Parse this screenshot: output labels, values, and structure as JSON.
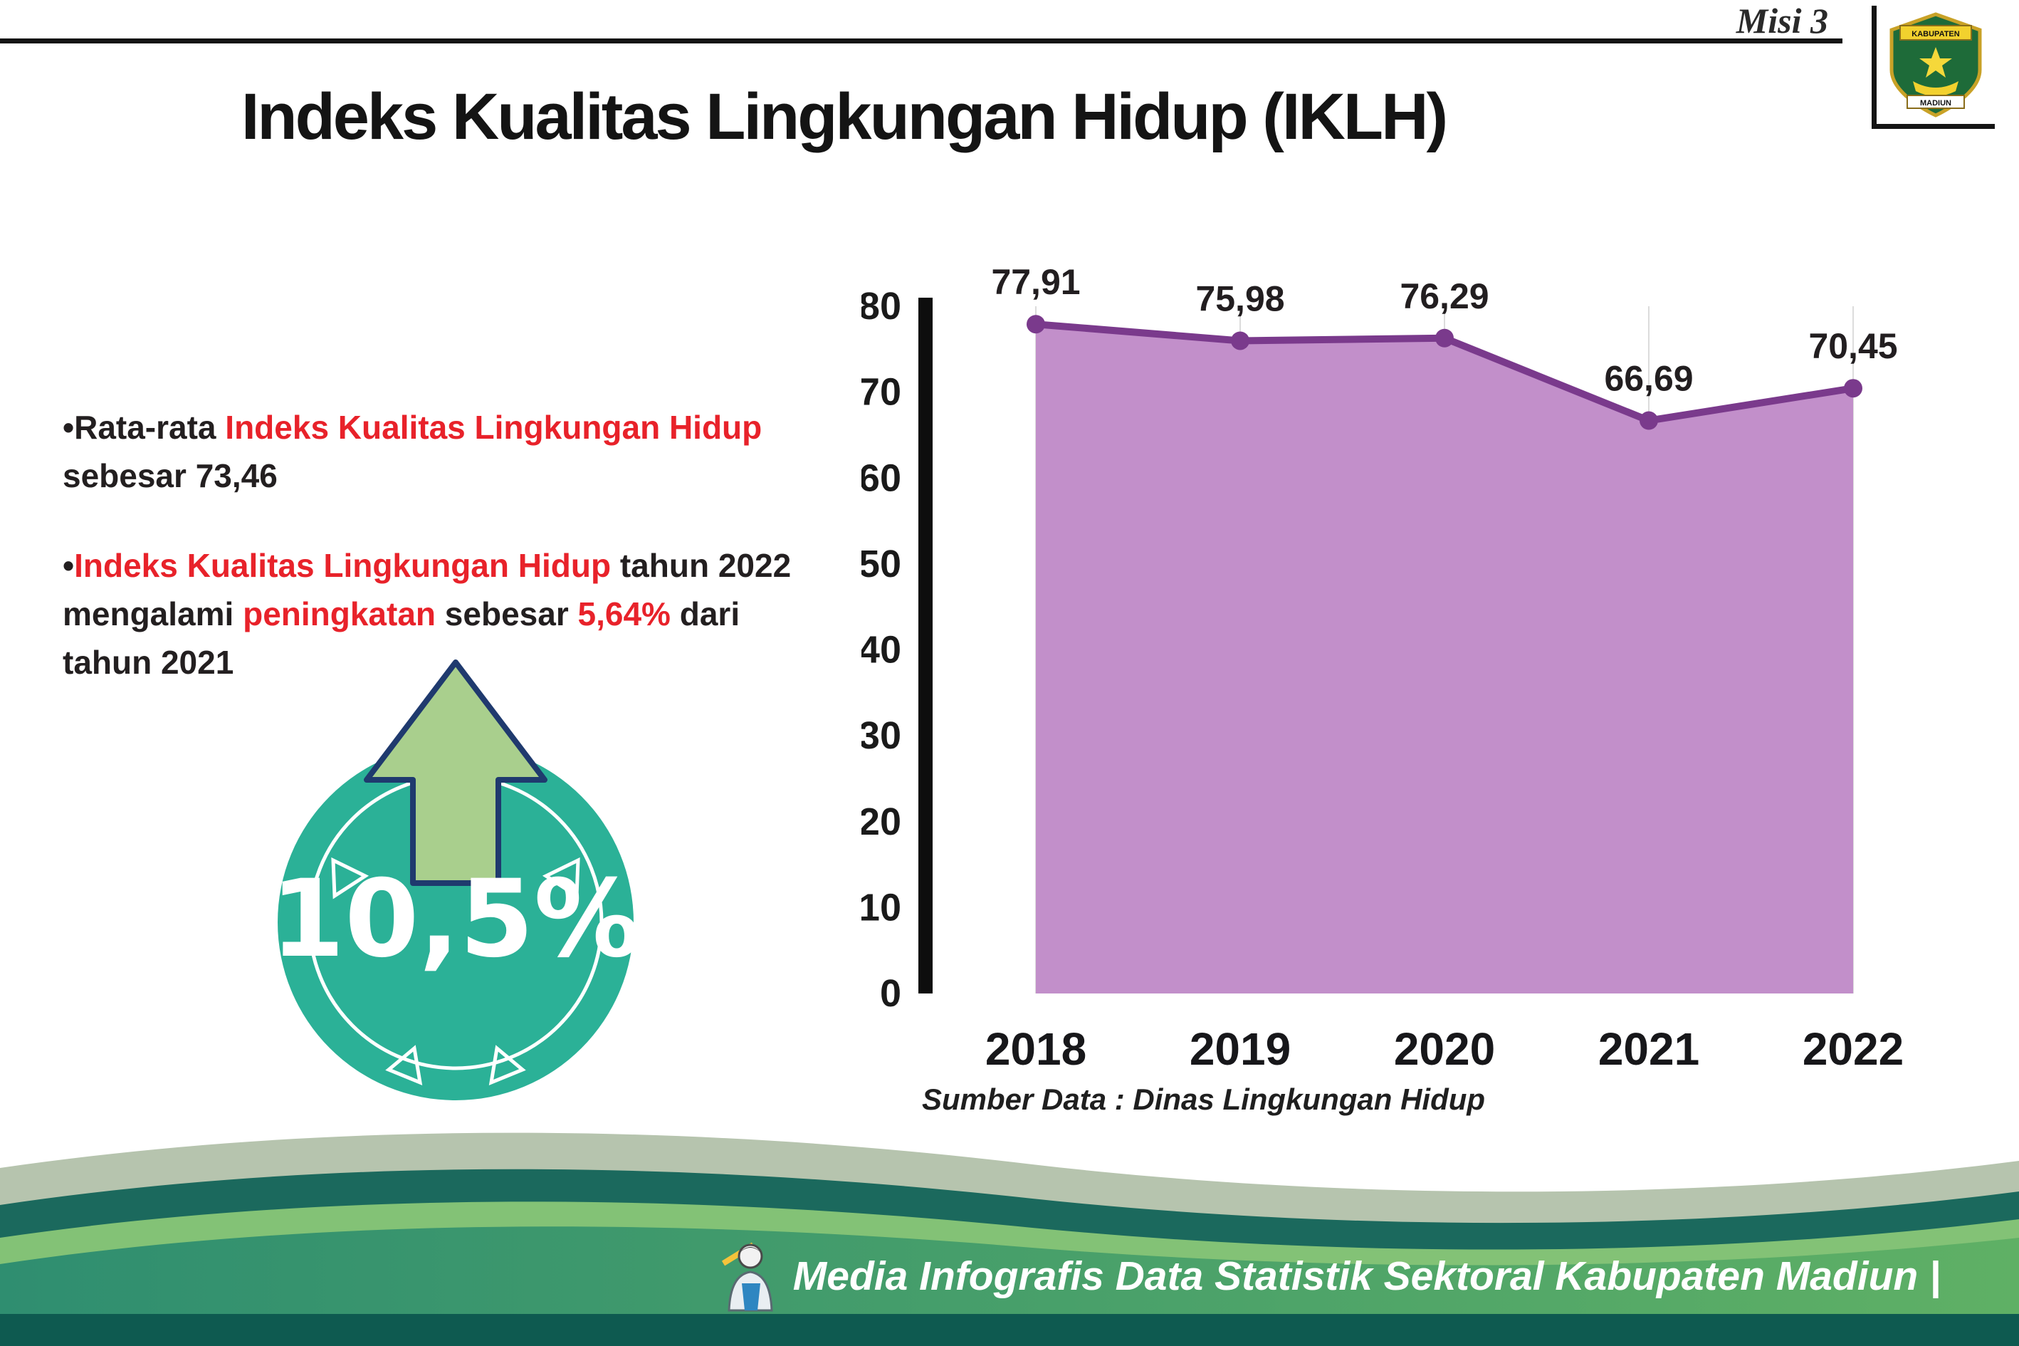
{
  "header": {
    "misi": "Misi 3",
    "title": "Indeks Kualitas Lingkungan Hidup (IKLH)",
    "logo": {
      "name": "Lambang Kabupaten Madiun",
      "banner": "KABUPATEN",
      "bottom": "MADIUN"
    }
  },
  "bullets": [
    {
      "segments": [
        {
          "text": "•Rata-rata ",
          "style": "dark"
        },
        {
          "text": "Indeks Kualitas Lingkungan Hidup",
          "style": "red"
        },
        {
          "text": " sebesar 73,46",
          "style": "dark"
        }
      ]
    },
    {
      "segments": [
        {
          "text": "•",
          "style": "dark"
        },
        {
          "text": "Indeks Kualitas Lingkungan Hidup",
          "style": "red"
        },
        {
          "text": " tahun 2022 mengalami ",
          "style": "dark"
        },
        {
          "text": "peningkatan",
          "style": "red"
        },
        {
          "text": " sebesar ",
          "style": "dark"
        },
        {
          "text": "5,64%",
          "style": "red"
        },
        {
          "text": " dari tahun 2021",
          "style": "dark"
        }
      ]
    }
  ],
  "badge": {
    "value": "10,5%",
    "direction": "up-arrow"
  },
  "chart_data": {
    "type": "area",
    "title": "",
    "categories": [
      "2018",
      "2019",
      "2020",
      "2021",
      "2022"
    ],
    "values": [
      77.91,
      75.98,
      76.29,
      66.69,
      70.45
    ],
    "value_labels": [
      "77,91",
      "75,98",
      "76,29",
      "66,69",
      "70,45"
    ],
    "yticks": [
      0,
      10,
      20,
      30,
      40,
      50,
      60,
      70,
      80
    ],
    "ylim": [
      0,
      80
    ],
    "xlabel": "",
    "ylabel": "",
    "grid": "vertical-light",
    "legend": "none",
    "line_color": "#7a3a8c",
    "area_color": "#c28fca",
    "source": "Sumber Data : Dinas Lingkungan Hidup"
  },
  "footer": {
    "text": "Media Infografis Data Statistik Sektoral Kabupaten Madiun |"
  },
  "colors": {
    "accent_red": "#e8222a",
    "line_purple": "#7a3a8c",
    "fill_mauve": "#c28fca",
    "badge_teal": "#2bb197",
    "arrow_green": "#a9cf8d",
    "arrow_outline_navy": "#1f3a6e",
    "wave_sage": "#b6c4ae",
    "wave_dark_teal": "#1b695d",
    "wave_light_green": "#83c276",
    "wave_main_left": "#2f8e70",
    "wave_main_right": "#5fb065",
    "wave_bottom_strip": "#0e5a50"
  }
}
